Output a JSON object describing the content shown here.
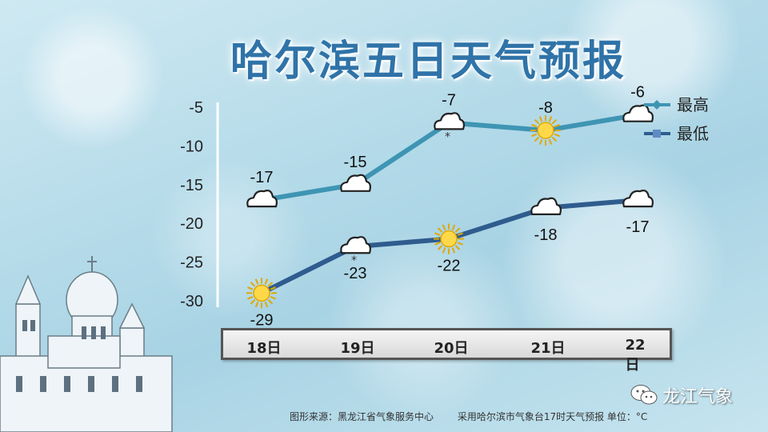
{
  "title": "哈尔滨五日天气预报",
  "legend": {
    "high": "最高",
    "low": "最低"
  },
  "colors": {
    "high": "#3e95b3",
    "low": "#2f5c8e",
    "title": "#2f73a8"
  },
  "footer": {
    "source": "图形来源：黑龙江省气象服务中心",
    "note": "采用哈尔滨市气象台17时天气预报 单位：°C"
  },
  "brand": {
    "name": "龙江气象",
    "icon": "wechat-icon"
  },
  "chart_data": {
    "type": "line",
    "categories": [
      "18日",
      "19日",
      "20日",
      "21日",
      "22日"
    ],
    "ylim": [
      -30,
      -5
    ],
    "yticks": [
      -5,
      -10,
      -15,
      -20,
      -25,
      -30
    ],
    "series": [
      {
        "name": "最高",
        "values": [
          -17,
          -15,
          -7,
          -8,
          -6
        ],
        "weather": [
          "cloudy",
          "cloudy",
          "snow",
          "sunny",
          "cloudy"
        ]
      },
      {
        "name": "最低",
        "values": [
          -29,
          -23,
          -22,
          -18,
          -17
        ],
        "weather": [
          "sunny",
          "snow",
          "sunny",
          "cloudy",
          "cloudy"
        ]
      }
    ]
  }
}
